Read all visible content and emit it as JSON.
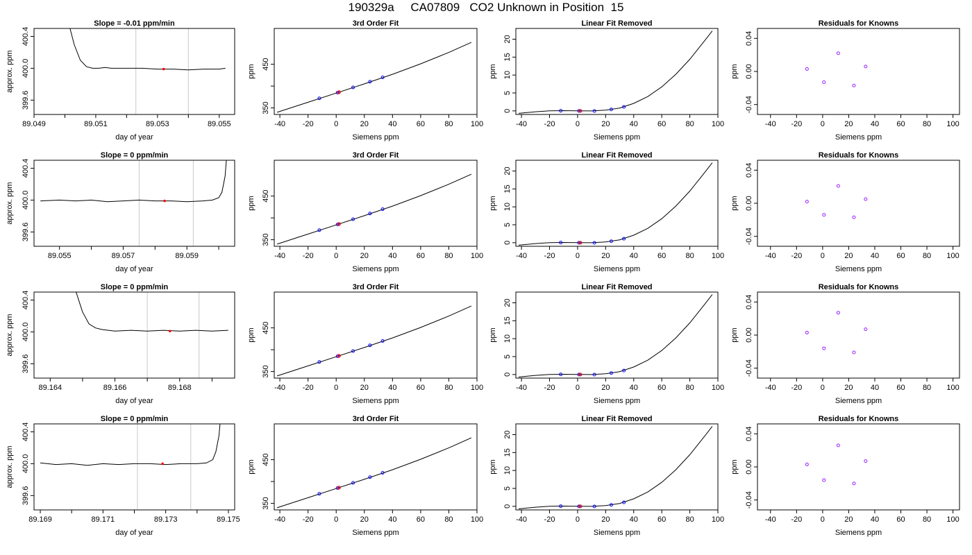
{
  "page": {
    "title": "190329a     CA07809   CO2 Unknown in Position  15"
  },
  "colors": {
    "line": "#000000",
    "vline": "#c8c8c8",
    "unknown_point": "#ff0000",
    "known_point": "#0000ff",
    "residual_point": "#9a1fff"
  },
  "chart_data": [
    {
      "type": "line",
      "panel": "trace",
      "row": 0,
      "title": "Slope =  -0.01  ppm/min",
      "xlabel": "day of year",
      "ylabel": "approx. ppm",
      "xlim": [
        89.049,
        89.0555
      ],
      "ylim": [
        399.42,
        400.5
      ],
      "xticks": [
        89.049,
        89.05,
        89.051,
        89.052,
        89.053,
        89.054,
        89.055
      ],
      "xtick_labels": [
        "89.049",
        "",
        "89.051",
        "",
        "89.053",
        "",
        "89.055"
      ],
      "yticks": [
        399.6,
        400.0,
        400.4
      ],
      "ytick_labels": [
        "399.6",
        "400.0",
        "400.4"
      ],
      "vlines": [
        89.0523,
        89.054
      ],
      "marker": {
        "x": 89.0532,
        "y": 399.99
      },
      "series": [
        {
          "x": [
            89.0499,
            89.0501,
            89.0503,
            89.0505,
            89.0507,
            89.0509,
            89.0511,
            89.0513,
            89.0515,
            89.052,
            89.0525,
            89.053,
            89.0535,
            89.054,
            89.0545,
            89.055,
            89.0552
          ],
          "y": [
            400.9,
            400.6,
            400.3,
            400.1,
            400.02,
            400.0,
            400.0,
            400.01,
            400.0,
            400.0,
            400.0,
            399.99,
            399.99,
            399.98,
            399.99,
            399.99,
            400.0
          ]
        }
      ]
    },
    {
      "type": "line",
      "panel": "fit",
      "row": 0,
      "title": "3rd Order Fit",
      "xlabel": "Siemens ppm",
      "ylabel": "ppm",
      "xlim": [
        -44,
        100
      ],
      "ylim": [
        335,
        532
      ],
      "xticks": [
        -40,
        -20,
        0,
        20,
        40,
        60,
        80,
        100
      ],
      "yticks": [
        350,
        400,
        450
      ],
      "ytick_labels": [
        "350",
        "",
        "450"
      ],
      "series": [
        {
          "x": [
            -42,
            -20,
            0,
            20,
            40,
            60,
            80,
            96
          ],
          "y": [
            340,
            363,
            384,
            405,
            427,
            451,
            477,
            500
          ]
        }
      ],
      "knowns": {
        "x": [
          -12,
          1,
          12,
          24,
          33
        ],
        "y": [
          372,
          385,
          397,
          410,
          420
        ]
      },
      "unknown": {
        "x": 2,
        "y": 386
      }
    },
    {
      "type": "line",
      "panel": "linear_removed",
      "row": 0,
      "title": "Linear Fit Removed",
      "xlabel": "Siemens ppm",
      "ylabel": "ppm",
      "xlim": [
        -44,
        100
      ],
      "ylim": [
        -1,
        23
      ],
      "xticks": [
        -40,
        -20,
        0,
        20,
        40,
        60,
        80,
        100
      ],
      "yticks": [
        0,
        5,
        10,
        15,
        20
      ],
      "series": [
        {
          "x": [
            -42,
            -30,
            -20,
            -10,
            0,
            10,
            20,
            30,
            40,
            50,
            60,
            70,
            80,
            90,
            96
          ],
          "y": [
            -0.7,
            -0.25,
            0.0,
            0.06,
            0.0,
            -0.02,
            0.2,
            0.8,
            2.1,
            4.0,
            6.7,
            10.2,
            14.4,
            19.3,
            22.3
          ]
        }
      ],
      "knowns": {
        "x": [
          -12,
          1,
          12,
          24,
          33
        ],
        "y": [
          0.04,
          0.0,
          -0.03,
          0.4,
          1.1
        ]
      },
      "unknown": {
        "x": 2,
        "y": 0.0
      }
    },
    {
      "type": "scatter",
      "panel": "residuals",
      "row": 0,
      "title": "Residuals for Knowns",
      "xlabel": "Siemens ppm",
      "ylabel": "ppm",
      "xlim": [
        -50,
        105
      ],
      "ylim": [
        -0.052,
        0.052
      ],
      "xticks": [
        -40,
        -20,
        0,
        20,
        40,
        60,
        80,
        100
      ],
      "yticks": [
        -0.04,
        0.0,
        0.04
      ],
      "ytick_labels": [
        "-0.04",
        "0.00",
        "0.04"
      ],
      "points": {
        "x": [
          -12,
          1,
          12,
          24,
          33
        ],
        "y": [
          0.003,
          -0.013,
          0.022,
          -0.017,
          0.006
        ]
      }
    },
    {
      "type": "line",
      "panel": "trace",
      "row": 1,
      "title": "Slope =  0  ppm/min",
      "xlabel": "day of year",
      "ylabel": "approx. ppm",
      "xlim": [
        89.0542,
        89.0605
      ],
      "ylim": [
        399.42,
        400.5
      ],
      "xticks": [
        89.055,
        89.056,
        89.057,
        89.058,
        89.059,
        89.06
      ],
      "xtick_labels": [
        "89.055",
        "",
        "89.057",
        "",
        "89.059",
        ""
      ],
      "yticks": [
        399.6,
        400.0,
        400.4
      ],
      "ytick_labels": [
        "399.6",
        "400.0",
        "400.4"
      ],
      "vlines": [
        89.0575,
        89.0592
      ],
      "marker": {
        "x": 89.0583,
        "y": 399.99
      },
      "series": [
        {
          "x": [
            89.0544,
            89.055,
            89.0555,
            89.056,
            89.0565,
            89.057,
            89.0575,
            89.058,
            89.0585,
            89.059,
            89.0595,
            89.0598,
            89.06,
            89.0601,
            89.0602,
            89.0603
          ],
          "y": [
            399.99,
            400.0,
            399.99,
            400.0,
            399.98,
            399.99,
            400.0,
            399.99,
            399.99,
            399.98,
            399.99,
            400.0,
            400.03,
            400.1,
            400.3,
            400.8
          ]
        }
      ]
    },
    {
      "type": "line",
      "panel": "fit",
      "row": 1,
      "title": "3rd Order Fit",
      "xlabel": "Siemens ppm",
      "ylabel": "ppm",
      "xlim": [
        -44,
        100
      ],
      "ylim": [
        335,
        532
      ],
      "xticks": [
        -40,
        -20,
        0,
        20,
        40,
        60,
        80,
        100
      ],
      "yticks": [
        350,
        400,
        450
      ],
      "ytick_labels": [
        "350",
        "",
        "450"
      ],
      "series": [
        {
          "x": [
            -42,
            -20,
            0,
            20,
            40,
            60,
            80,
            96
          ],
          "y": [
            340,
            363,
            384,
            405,
            427,
            451,
            477,
            500
          ]
        }
      ],
      "knowns": {
        "x": [
          -12,
          1,
          12,
          24,
          33
        ],
        "y": [
          372,
          385,
          397,
          410,
          420
        ]
      },
      "unknown": {
        "x": 2,
        "y": 386
      }
    },
    {
      "type": "line",
      "panel": "linear_removed",
      "row": 1,
      "title": "Linear Fit Removed",
      "xlabel": "Siemens ppm",
      "ylabel": "ppm",
      "xlim": [
        -44,
        100
      ],
      "ylim": [
        -1,
        23
      ],
      "xticks": [
        -40,
        -20,
        0,
        20,
        40,
        60,
        80,
        100
      ],
      "yticks": [
        0,
        5,
        10,
        15,
        20
      ],
      "series": [
        {
          "x": [
            -42,
            -30,
            -20,
            -10,
            0,
            10,
            20,
            30,
            40,
            50,
            60,
            70,
            80,
            90,
            96
          ],
          "y": [
            -0.7,
            -0.25,
            0.0,
            0.06,
            0.0,
            -0.02,
            0.2,
            0.8,
            2.1,
            4.0,
            6.7,
            10.2,
            14.4,
            19.3,
            22.3
          ]
        }
      ],
      "knowns": {
        "x": [
          -12,
          1,
          12,
          24,
          33
        ],
        "y": [
          0.04,
          0.0,
          -0.03,
          0.4,
          1.1
        ]
      },
      "unknown": {
        "x": 2,
        "y": 0.0
      }
    },
    {
      "type": "scatter",
      "panel": "residuals",
      "row": 1,
      "title": "Residuals for Knowns",
      "xlabel": "Siemens ppm",
      "ylabel": "ppm",
      "xlim": [
        -50,
        105
      ],
      "ylim": [
        -0.052,
        0.052
      ],
      "xticks": [
        -40,
        -20,
        0,
        20,
        40,
        60,
        80,
        100
      ],
      "yticks": [
        -0.04,
        0.0,
        0.04
      ],
      "ytick_labels": [
        "-0.04",
        "0.00",
        "0.04"
      ],
      "points": {
        "x": [
          -12,
          1,
          12,
          24,
          33
        ],
        "y": [
          0.002,
          -0.014,
          0.021,
          -0.017,
          0.005
        ]
      }
    },
    {
      "type": "line",
      "panel": "trace",
      "row": 2,
      "title": "Slope =  0  ppm/min",
      "xlabel": "day of year",
      "ylabel": "approx. ppm",
      "xlim": [
        89.1635,
        89.1697
      ],
      "ylim": [
        399.42,
        400.5
      ],
      "xticks": [
        89.164,
        89.165,
        89.166,
        89.167,
        89.168,
        89.169
      ],
      "xtick_labels": [
        "89.164",
        "",
        "89.166",
        "",
        "89.168",
        ""
      ],
      "yticks": [
        399.6,
        400.0,
        400.4
      ],
      "ytick_labels": [
        "399.6",
        "400.0",
        "400.4"
      ],
      "vlines": [
        89.167,
        89.1686
      ],
      "marker": {
        "x": 89.1677,
        "y": 400.01
      },
      "series": [
        {
          "x": [
            89.1646,
            89.1648,
            89.165,
            89.1652,
            89.1654,
            89.1656,
            89.166,
            89.1665,
            89.167,
            89.1675,
            89.168,
            89.1685,
            89.169,
            89.1695
          ],
          "y": [
            400.9,
            400.5,
            400.25,
            400.1,
            400.05,
            400.03,
            400.01,
            400.02,
            400.01,
            400.02,
            400.01,
            400.02,
            400.01,
            400.02
          ]
        }
      ]
    },
    {
      "type": "line",
      "panel": "fit",
      "row": 2,
      "title": "3rd Order Fit",
      "xlabel": "Siemens ppm",
      "ylabel": "ppm",
      "xlim": [
        -44,
        100
      ],
      "ylim": [
        335,
        532
      ],
      "xticks": [
        -40,
        -20,
        0,
        20,
        40,
        60,
        80,
        100
      ],
      "yticks": [
        350,
        400,
        450
      ],
      "ytick_labels": [
        "350",
        "",
        "450"
      ],
      "series": [
        {
          "x": [
            -42,
            -20,
            0,
            20,
            40,
            60,
            80,
            96
          ],
          "y": [
            340,
            363,
            384,
            405,
            427,
            451,
            477,
            500
          ]
        }
      ],
      "knowns": {
        "x": [
          -12,
          1,
          12,
          24,
          33
        ],
        "y": [
          372,
          385,
          397,
          410,
          420
        ]
      },
      "unknown": {
        "x": 2,
        "y": 386
      }
    },
    {
      "type": "line",
      "panel": "linear_removed",
      "row": 2,
      "title": "Linear Fit Removed",
      "xlabel": "Siemens ppm",
      "ylabel": "ppm",
      "xlim": [
        -44,
        100
      ],
      "ylim": [
        -1,
        23
      ],
      "xticks": [
        -40,
        -20,
        0,
        20,
        40,
        60,
        80,
        100
      ],
      "yticks": [
        0,
        5,
        10,
        15,
        20
      ],
      "series": [
        {
          "x": [
            -42,
            -30,
            -20,
            -10,
            0,
            10,
            20,
            30,
            40,
            50,
            60,
            70,
            80,
            90,
            96
          ],
          "y": [
            -0.7,
            -0.25,
            0.0,
            0.06,
            0.0,
            -0.02,
            0.2,
            0.8,
            2.1,
            4.0,
            6.7,
            10.2,
            14.4,
            19.3,
            22.3
          ]
        }
      ],
      "knowns": {
        "x": [
          -12,
          1,
          12,
          24,
          33
        ],
        "y": [
          0.04,
          0.0,
          -0.03,
          0.4,
          1.1
        ]
      },
      "unknown": {
        "x": 2,
        "y": 0.0
      }
    },
    {
      "type": "scatter",
      "panel": "residuals",
      "row": 2,
      "title": "Residuals for Knowns",
      "xlabel": "Siemens ppm",
      "ylabel": "ppm",
      "xlim": [
        -50,
        105
      ],
      "ylim": [
        -0.052,
        0.052
      ],
      "xticks": [
        -40,
        -20,
        0,
        20,
        40,
        60,
        80,
        100
      ],
      "yticks": [
        -0.04,
        0.0,
        0.04
      ],
      "ytick_labels": [
        "-0.04",
        "0.00",
        "0.04"
      ],
      "points": {
        "x": [
          -12,
          1,
          12,
          24,
          33
        ],
        "y": [
          0.003,
          -0.016,
          0.027,
          -0.021,
          0.007
        ]
      }
    },
    {
      "type": "line",
      "panel": "trace",
      "row": 3,
      "title": "Slope =  0  ppm/min",
      "xlabel": "day of year",
      "ylabel": "approx. ppm",
      "xlim": [
        89.1688,
        89.1752
      ],
      "ylim": [
        399.42,
        400.5
      ],
      "xticks": [
        89.169,
        89.17,
        89.171,
        89.172,
        89.173,
        89.174,
        89.175
      ],
      "xtick_labels": [
        "89.169",
        "",
        "89.171",
        "",
        "89.173",
        "",
        "89.175"
      ],
      "yticks": [
        399.6,
        400.0,
        400.4
      ],
      "ytick_labels": [
        "399.6",
        "400.0",
        "400.4"
      ],
      "vlines": [
        89.1721,
        89.1738
      ],
      "marker": {
        "x": 89.1729,
        "y": 400.0
      },
      "series": [
        {
          "x": [
            89.169,
            89.1695,
            89.17,
            89.1705,
            89.171,
            89.1715,
            89.172,
            89.1725,
            89.173,
            89.1735,
            89.174,
            89.1743,
            89.1745,
            89.1746,
            89.1747,
            89.1748
          ],
          "y": [
            400.01,
            399.99,
            400.0,
            399.98,
            400.0,
            399.99,
            400.0,
            400.0,
            399.99,
            400.0,
            400.0,
            400.01,
            400.05,
            400.15,
            400.35,
            400.8
          ]
        }
      ]
    },
    {
      "type": "line",
      "panel": "fit",
      "row": 3,
      "title": "3rd Order Fit",
      "xlabel": "Siemens ppm",
      "ylabel": "ppm",
      "xlim": [
        -44,
        100
      ],
      "ylim": [
        335,
        532
      ],
      "xticks": [
        -40,
        -20,
        0,
        20,
        40,
        60,
        80,
        100
      ],
      "yticks": [
        350,
        400,
        450
      ],
      "ytick_labels": [
        "350",
        "",
        "450"
      ],
      "series": [
        {
          "x": [
            -42,
            -20,
            0,
            20,
            40,
            60,
            80,
            96
          ],
          "y": [
            340,
            363,
            384,
            405,
            427,
            451,
            477,
            500
          ]
        }
      ],
      "knowns": {
        "x": [
          -12,
          1,
          12,
          24,
          33
        ],
        "y": [
          372,
          385,
          397,
          410,
          420
        ]
      },
      "unknown": {
        "x": 2,
        "y": 386
      }
    },
    {
      "type": "line",
      "panel": "linear_removed",
      "row": 3,
      "title": "Linear Fit Removed",
      "xlabel": "Siemens ppm",
      "ylabel": "ppm",
      "xlim": [
        -44,
        100
      ],
      "ylim": [
        -1,
        23
      ],
      "xticks": [
        -40,
        -20,
        0,
        20,
        40,
        60,
        80,
        100
      ],
      "yticks": [
        0,
        5,
        10,
        15,
        20
      ],
      "series": [
        {
          "x": [
            -42,
            -30,
            -20,
            -10,
            0,
            10,
            20,
            30,
            40,
            50,
            60,
            70,
            80,
            90,
            96
          ],
          "y": [
            -0.7,
            -0.25,
            0.0,
            0.06,
            0.0,
            -0.02,
            0.2,
            0.8,
            2.1,
            4.0,
            6.7,
            10.2,
            14.4,
            19.3,
            22.3
          ]
        }
      ],
      "knowns": {
        "x": [
          -12,
          1,
          12,
          24,
          33
        ],
        "y": [
          0.04,
          0.0,
          -0.03,
          0.4,
          1.1
        ]
      },
      "unknown": {
        "x": 2,
        "y": 0.0
      }
    },
    {
      "type": "scatter",
      "panel": "residuals",
      "row": 3,
      "title": "Residuals for Knowns",
      "xlabel": "Siemens ppm",
      "ylabel": "ppm",
      "xlim": [
        -50,
        105
      ],
      "ylim": [
        -0.052,
        0.052
      ],
      "xticks": [
        -40,
        -20,
        0,
        20,
        40,
        60,
        80,
        100
      ],
      "yticks": [
        -0.04,
        0.0,
        0.04
      ],
      "ytick_labels": [
        "-0.04",
        "0.00",
        "0.04"
      ],
      "points": {
        "x": [
          -12,
          1,
          12,
          24,
          33
        ],
        "y": [
          0.003,
          -0.016,
          0.026,
          -0.02,
          0.007
        ]
      }
    }
  ]
}
